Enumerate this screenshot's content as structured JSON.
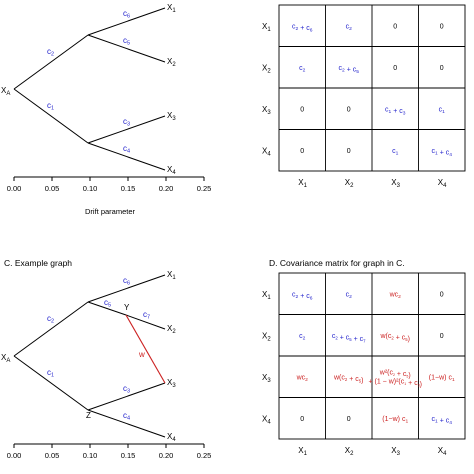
{
  "panel_a": {
    "root": "X",
    "root_sub": "A",
    "leaves": [
      {
        "name": "X",
        "sub": "1"
      },
      {
        "name": "X",
        "sub": "2"
      },
      {
        "name": "X",
        "sub": "3"
      },
      {
        "name": "X",
        "sub": "4"
      }
    ],
    "edge_labels": [
      "c",
      "2",
      "c",
      "1",
      "c",
      "6",
      "c",
      "5",
      "c",
      "3",
      "c",
      "4"
    ],
    "axis_ticks": [
      "0.00",
      "0.05",
      "0.10",
      "0.15",
      "0.20",
      "0.25"
    ],
    "axis_label": "Drift parameter"
  },
  "panel_b": {
    "row_labels": [
      {
        "n": "X",
        "s": "1"
      },
      {
        "n": "X",
        "s": "2"
      },
      {
        "n": "X",
        "s": "3"
      },
      {
        "n": "X",
        "s": "4"
      }
    ],
    "col_labels": [
      {
        "n": "X",
        "s": "1"
      },
      {
        "n": "X",
        "s": "2"
      },
      {
        "n": "X",
        "s": "3"
      },
      {
        "n": "X",
        "s": "4"
      }
    ],
    "cells": [
      [
        "c2 + c6",
        "c2",
        "0",
        "0"
      ],
      [
        "c2",
        "c2 + c5",
        "0",
        "0"
      ],
      [
        "0",
        "0",
        "c1 + c3",
        "c1"
      ],
      [
        "0",
        "0",
        "c1",
        "c1 + c4"
      ]
    ]
  },
  "panel_c": {
    "title": "C. Example graph",
    "root": "X",
    "root_sub": "A",
    "node_y": "Y",
    "node_z": "Z",
    "w_label": "w",
    "leaves": [
      {
        "name": "X",
        "sub": "1"
      },
      {
        "name": "X",
        "sub": "2"
      },
      {
        "name": "X",
        "sub": "3"
      },
      {
        "name": "X",
        "sub": "4"
      }
    ],
    "axis_ticks": [
      "0.00",
      "0.05",
      "0.10",
      "0.15",
      "0.20",
      "0.25"
    ]
  },
  "panel_d": {
    "title": "D. Covariance matrix for graph in C.",
    "row_labels": [
      {
        "n": "X",
        "s": "1"
      },
      {
        "n": "X",
        "s": "2"
      },
      {
        "n": "X",
        "s": "3"
      },
      {
        "n": "X",
        "s": "4"
      }
    ],
    "col_labels": [
      {
        "n": "X",
        "s": "1"
      },
      {
        "n": "X",
        "s": "2"
      },
      {
        "n": "X",
        "s": "3"
      },
      {
        "n": "X",
        "s": "4"
      }
    ],
    "cells": [
      [
        "c2 + c6",
        "c2",
        "wc2",
        "0"
      ],
      [
        "c2",
        "c2 + c5 + c7",
        "w(c2 + c5)",
        "0"
      ],
      [
        "wc2",
        "w(c2 + c5)",
        "w²(c2 + c5) + (1 − w)²(c1 + c3)",
        "(1−w) c1"
      ],
      [
        "0",
        "0",
        "(1−w) c1",
        "c1 + c4"
      ]
    ]
  },
  "colors": {
    "blue": "#2222cc",
    "red": "#cc2222",
    "black": "#000000"
  }
}
